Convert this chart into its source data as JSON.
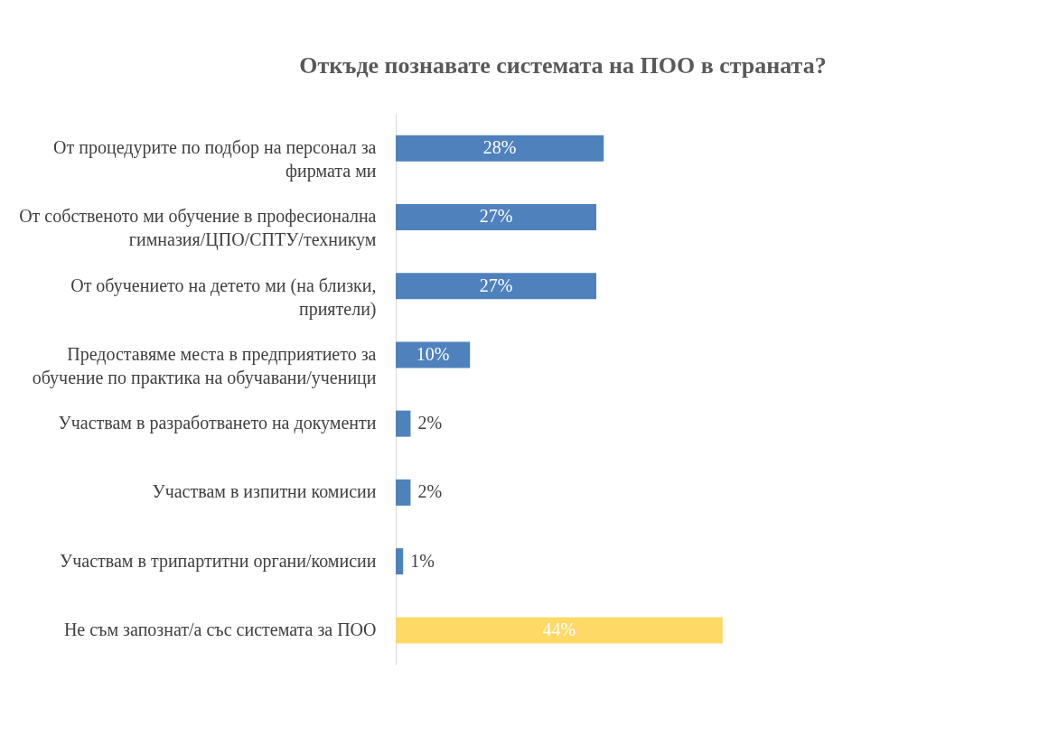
{
  "chart_data": {
    "type": "bar",
    "orientation": "horizontal",
    "title": "Откъде познавате системата на ПОО в страната?",
    "categories": [
      "От процедурите по подбор на персонал за\nфирмата ми",
      "От собственото ми обучение в професионална\nгимназия/ЦПО/СПТУ/техникум",
      "От обучението на детето ми (на близки,\nприятели)",
      "Предоставяме места в предприятието за\nобучение по практика на обучавани/ученици",
      "Участвам в  разработването на документи",
      "Участвам в  изпитни комисии",
      "Участвам в трипартитни органи/комисии",
      "Не съм запознат/а със системата за ПОО"
    ],
    "values": [
      28,
      27,
      27,
      10,
      2,
      2,
      1,
      44
    ],
    "value_labels": [
      "28%",
      "27%",
      "27%",
      "10%",
      "2%",
      "2%",
      "1%",
      "44%"
    ],
    "colors": [
      "#4f81bd",
      "#4f81bd",
      "#4f81bd",
      "#4f81bd",
      "#4f81bd",
      "#4f81bd",
      "#4f81bd",
      "#ffd966"
    ],
    "grid": false,
    "tick_labels": "y"
  }
}
